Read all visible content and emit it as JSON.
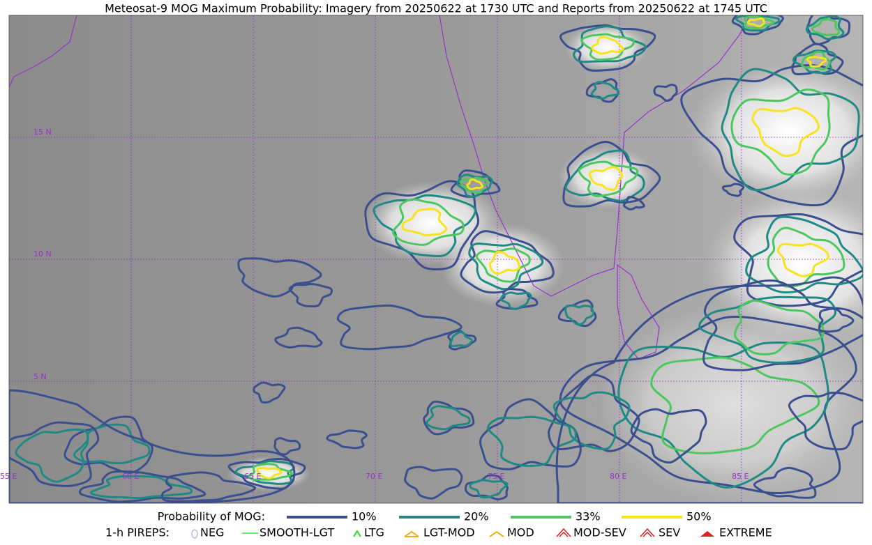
{
  "title": "Meteosat-9 MOG Maximum Probability: Imagery from 20250622 at 1730 UTC and Reports from 20250622 at 1745 UTC",
  "map": {
    "lat_labels": [
      "15 N",
      "10 N",
      "5 N"
    ],
    "lon_labels": [
      "55 E",
      "60 E",
      "65 E",
      "70 E",
      "75 E",
      "80 E",
      "85 E"
    ]
  },
  "legend": {
    "probability": {
      "label": "Probability of MOG:",
      "items": [
        {
          "label": "10%",
          "color": "#3b4f8f"
        },
        {
          "label": "20%",
          "color": "#1f8a84"
        },
        {
          "label": "33%",
          "color": "#4cc75f"
        },
        {
          "label": "50%",
          "color": "#f7e21e"
        }
      ]
    },
    "pireps": {
      "label": "1-h PIREPS:",
      "items": [
        "NEG",
        "SMOOTH-LGT",
        "LTG",
        "LGT-MOD",
        "MOD",
        "MOD-SEV",
        "SEV",
        "EXTREME"
      ]
    }
  }
}
